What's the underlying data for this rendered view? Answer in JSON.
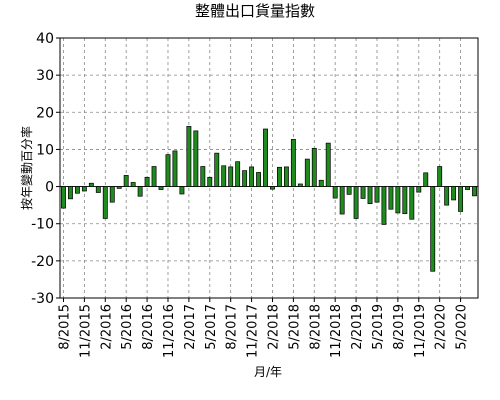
{
  "chart_data": {
    "type": "bar",
    "title": "整體出口貨量指數",
    "xlabel": "月/年",
    "ylabel": "按年變動百分率",
    "ylim": [
      -30,
      40
    ],
    "yticks": [
      40,
      30,
      20,
      10,
      0,
      -10,
      -20,
      -30
    ],
    "grid": true,
    "grid_style": "dashed",
    "bar_color": "#1f8b1f",
    "bar_edge_color": "#000000",
    "x": [
      "8/2015",
      "9/2015",
      "10/2015",
      "11/2015",
      "12/2015",
      "1/2016",
      "2/2016",
      "3/2016",
      "4/2016",
      "5/2016",
      "6/2016",
      "7/2016",
      "8/2016",
      "9/2016",
      "10/2016",
      "11/2016",
      "12/2016",
      "1/2017",
      "2/2017",
      "3/2017",
      "4/2017",
      "5/2017",
      "6/2017",
      "7/2017",
      "8/2017",
      "9/2017",
      "10/2017",
      "11/2017",
      "12/2017",
      "1/2018",
      "2/2018",
      "3/2018",
      "4/2018",
      "5/2018",
      "6/2018",
      "7/2018",
      "8/2018",
      "9/2018",
      "10/2018",
      "11/2018",
      "12/2018",
      "1/2019",
      "2/2019",
      "3/2019",
      "4/2019",
      "5/2019",
      "6/2019",
      "7/2019",
      "8/2019",
      "9/2019",
      "10/2019",
      "11/2019",
      "12/2019",
      "1/2020",
      "2/2020",
      "3/2020",
      "4/2020",
      "5/2020",
      "6/2020",
      "7/2020"
    ],
    "xtick_labels": [
      "8/2015",
      "11/2015",
      "2/2016",
      "5/2016",
      "8/2016",
      "11/2016",
      "2/2017",
      "5/2017",
      "8/2017",
      "11/2017",
      "2/2018",
      "5/2018",
      "8/2018",
      "11/2018",
      "2/2019",
      "5/2019",
      "8/2019",
      "11/2019",
      "2/2020",
      "5/2020"
    ],
    "series": [
      {
        "values": [
          -5.8,
          -3.3,
          -1.8,
          -1.2,
          0.9,
          -1.6,
          -8.6,
          -4.2,
          -0.5,
          3.0,
          1.1,
          -2.6,
          2.5,
          5.4,
          -0.8,
          8.6,
          9.6,
          -2.0,
          16.2,
          15.0,
          5.4,
          2.5,
          9.0,
          5.6,
          5.3,
          6.7,
          4.3,
          5.3,
          3.8,
          15.5,
          -0.7,
          5.2,
          5.3,
          12.7,
          0.7,
          7.4,
          10.3,
          1.7,
          11.7,
          -3.1,
          -7.4,
          -2.1,
          -8.6,
          -3.2,
          -4.6,
          -4.2,
          -10.2,
          -6.1,
          -7.1,
          -7.3,
          -8.8,
          -1.5,
          3.7,
          -22.8,
          5.4,
          -5.0,
          -3.6,
          -6.7,
          -0.8,
          -2.5
        ]
      }
    ]
  }
}
